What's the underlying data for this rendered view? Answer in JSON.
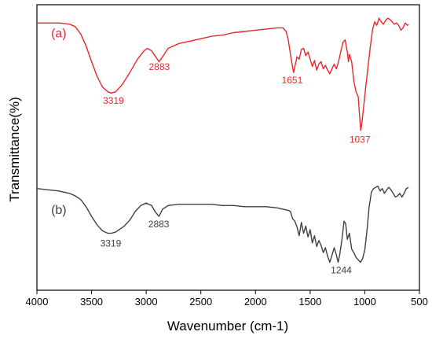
{
  "chart_data": {
    "type": "line",
    "xlabel": "Wavenumber (cm-1)",
    "ylabel": "Transmittance(%)",
    "xlim": [
      4000,
      500
    ],
    "x_ticks": [
      "4000",
      "3500",
      "3000",
      "2500",
      "2000",
      "1500",
      "1000",
      "500"
    ],
    "y_ticks_shown": false,
    "grid": false,
    "legend": "none",
    "colors": {
      "a": "#e8272d",
      "b": "#404040",
      "axis": "#000000"
    },
    "series": [
      {
        "name": "(a)",
        "points": [
          [
            4000,
            0.06
          ],
          [
            3800,
            0.06
          ],
          [
            3700,
            0.07
          ],
          [
            3650,
            0.09
          ],
          [
            3600,
            0.15
          ],
          [
            3550,
            0.25
          ],
          [
            3500,
            0.38
          ],
          [
            3450,
            0.5
          ],
          [
            3400,
            0.59
          ],
          [
            3350,
            0.63
          ],
          [
            3319,
            0.64
          ],
          [
            3280,
            0.63
          ],
          [
            3220,
            0.57
          ],
          [
            3150,
            0.47
          ],
          [
            3080,
            0.36
          ],
          [
            3020,
            0.29
          ],
          [
            2990,
            0.27
          ],
          [
            2950,
            0.29
          ],
          [
            2920,
            0.33
          ],
          [
            2883,
            0.38
          ],
          [
            2850,
            0.34
          ],
          [
            2800,
            0.27
          ],
          [
            2700,
            0.23
          ],
          [
            2600,
            0.21
          ],
          [
            2500,
            0.19
          ],
          [
            2400,
            0.17
          ],
          [
            2300,
            0.16
          ],
          [
            2200,
            0.14
          ],
          [
            2100,
            0.13
          ],
          [
            2000,
            0.12
          ],
          [
            1900,
            0.11
          ],
          [
            1800,
            0.1
          ],
          [
            1750,
            0.1
          ],
          [
            1720,
            0.13
          ],
          [
            1700,
            0.2
          ],
          [
            1680,
            0.32
          ],
          [
            1660,
            0.43
          ],
          [
            1651,
            0.47
          ],
          [
            1640,
            0.42
          ],
          [
            1620,
            0.34
          ],
          [
            1600,
            0.36
          ],
          [
            1580,
            0.28
          ],
          [
            1560,
            0.27
          ],
          [
            1540,
            0.33
          ],
          [
            1520,
            0.3
          ],
          [
            1500,
            0.36
          ],
          [
            1480,
            0.42
          ],
          [
            1460,
            0.37
          ],
          [
            1440,
            0.45
          ],
          [
            1420,
            0.4
          ],
          [
            1400,
            0.38
          ],
          [
            1380,
            0.44
          ],
          [
            1360,
            0.41
          ],
          [
            1340,
            0.45
          ],
          [
            1320,
            0.48
          ],
          [
            1300,
            0.44
          ],
          [
            1280,
            0.4
          ],
          [
            1260,
            0.44
          ],
          [
            1240,
            0.38
          ],
          [
            1220,
            0.3
          ],
          [
            1200,
            0.22
          ],
          [
            1180,
            0.2
          ],
          [
            1160,
            0.3
          ],
          [
            1150,
            0.38
          ],
          [
            1140,
            0.32
          ],
          [
            1120,
            0.38
          ],
          [
            1100,
            0.54
          ],
          [
            1080,
            0.63
          ],
          [
            1060,
            0.67
          ],
          [
            1050,
            0.8
          ],
          [
            1037,
            0.95
          ],
          [
            1025,
            0.88
          ],
          [
            1010,
            0.75
          ],
          [
            990,
            0.58
          ],
          [
            970,
            0.42
          ],
          [
            950,
            0.26
          ],
          [
            930,
            0.12
          ],
          [
            910,
            0.05
          ],
          [
            890,
            0.08
          ],
          [
            870,
            0.02
          ],
          [
            850,
            0.05
          ],
          [
            830,
            0.07
          ],
          [
            810,
            0.04
          ],
          [
            790,
            0.02
          ],
          [
            770,
            0.03
          ],
          [
            750,
            0.05
          ],
          [
            730,
            0.07
          ],
          [
            710,
            0.06
          ],
          [
            690,
            0.08
          ],
          [
            670,
            0.12
          ],
          [
            650,
            0.1
          ],
          [
            630,
            0.06
          ],
          [
            610,
            0.08
          ],
          [
            600,
            0.07
          ]
        ]
      },
      {
        "name": "(b)",
        "points": [
          [
            4000,
            1.43
          ],
          [
            3900,
            1.44
          ],
          [
            3800,
            1.45
          ],
          [
            3700,
            1.47
          ],
          [
            3650,
            1.49
          ],
          [
            3600,
            1.52
          ],
          [
            3550,
            1.58
          ],
          [
            3500,
            1.66
          ],
          [
            3450,
            1.73
          ],
          [
            3400,
            1.78
          ],
          [
            3350,
            1.8
          ],
          [
            3319,
            1.8
          ],
          [
            3280,
            1.79
          ],
          [
            3200,
            1.74
          ],
          [
            3150,
            1.69
          ],
          [
            3100,
            1.62
          ],
          [
            3050,
            1.57
          ],
          [
            3000,
            1.55
          ],
          [
            2950,
            1.57
          ],
          [
            2920,
            1.62
          ],
          [
            2883,
            1.66
          ],
          [
            2850,
            1.6
          ],
          [
            2800,
            1.57
          ],
          [
            2700,
            1.56
          ],
          [
            2600,
            1.56
          ],
          [
            2500,
            1.56
          ],
          [
            2400,
            1.56
          ],
          [
            2300,
            1.57
          ],
          [
            2200,
            1.57
          ],
          [
            2100,
            1.58
          ],
          [
            2000,
            1.58
          ],
          [
            1900,
            1.58
          ],
          [
            1800,
            1.59
          ],
          [
            1750,
            1.6
          ],
          [
            1700,
            1.61
          ],
          [
            1680,
            1.62
          ],
          [
            1660,
            1.68
          ],
          [
            1640,
            1.7
          ],
          [
            1620,
            1.75
          ],
          [
            1600,
            1.82
          ],
          [
            1580,
            1.71
          ],
          [
            1560,
            1.8
          ],
          [
            1540,
            1.74
          ],
          [
            1520,
            1.83
          ],
          [
            1500,
            1.77
          ],
          [
            1480,
            1.88
          ],
          [
            1460,
            1.82
          ],
          [
            1440,
            1.91
          ],
          [
            1420,
            1.86
          ],
          [
            1400,
            1.9
          ],
          [
            1380,
            1.96
          ],
          [
            1360,
            1.92
          ],
          [
            1340,
            1.99
          ],
          [
            1320,
            2.04
          ],
          [
            1300,
            1.98
          ],
          [
            1280,
            1.92
          ],
          [
            1260,
            1.98
          ],
          [
            1244,
            2.04
          ],
          [
            1230,
            1.98
          ],
          [
            1210,
            1.86
          ],
          [
            1190,
            1.7
          ],
          [
            1175,
            1.72
          ],
          [
            1160,
            1.85
          ],
          [
            1140,
            1.8
          ],
          [
            1120,
            1.93
          ],
          [
            1100,
            1.96
          ],
          [
            1080,
            2.0
          ],
          [
            1060,
            2.02
          ],
          [
            1040,
            2.04
          ],
          [
            1020,
            2.01
          ],
          [
            1000,
            1.94
          ],
          [
            980,
            1.78
          ],
          [
            960,
            1.58
          ],
          [
            940,
            1.46
          ],
          [
            920,
            1.43
          ],
          [
            900,
            1.42
          ],
          [
            880,
            1.41
          ],
          [
            860,
            1.45
          ],
          [
            840,
            1.43
          ],
          [
            820,
            1.47
          ],
          [
            800,
            1.44
          ],
          [
            780,
            1.42
          ],
          [
            760,
            1.44
          ],
          [
            740,
            1.47
          ],
          [
            720,
            1.5
          ],
          [
            700,
            1.49
          ],
          [
            680,
            1.47
          ],
          [
            660,
            1.5
          ],
          [
            640,
            1.47
          ],
          [
            620,
            1.43
          ],
          [
            600,
            1.42
          ]
        ]
      }
    ],
    "annotations": [
      {
        "text": "(a)",
        "series": 0,
        "x": 3870,
        "y": 0.18,
        "kind": "tag"
      },
      {
        "text": "3319",
        "series": 0,
        "x": 3300,
        "y": 0.73,
        "kind": "peak"
      },
      {
        "text": "2883",
        "series": 0,
        "x": 2880,
        "y": 0.45,
        "kind": "peak"
      },
      {
        "text": "1651",
        "series": 0,
        "x": 1665,
        "y": 0.56,
        "kind": "peak"
      },
      {
        "text": "1037",
        "series": 0,
        "x": 1045,
        "y": 1.05,
        "kind": "peak"
      },
      {
        "text": "(b)",
        "series": 1,
        "x": 3870,
        "y": 1.64,
        "kind": "tag"
      },
      {
        "text": "3319",
        "series": 1,
        "x": 3325,
        "y": 1.91,
        "kind": "peak"
      },
      {
        "text": "2883",
        "series": 1,
        "x": 2885,
        "y": 1.75,
        "kind": "peak"
      },
      {
        "text": "1244",
        "series": 1,
        "x": 1215,
        "y": 2.13,
        "kind": "peak"
      }
    ]
  }
}
